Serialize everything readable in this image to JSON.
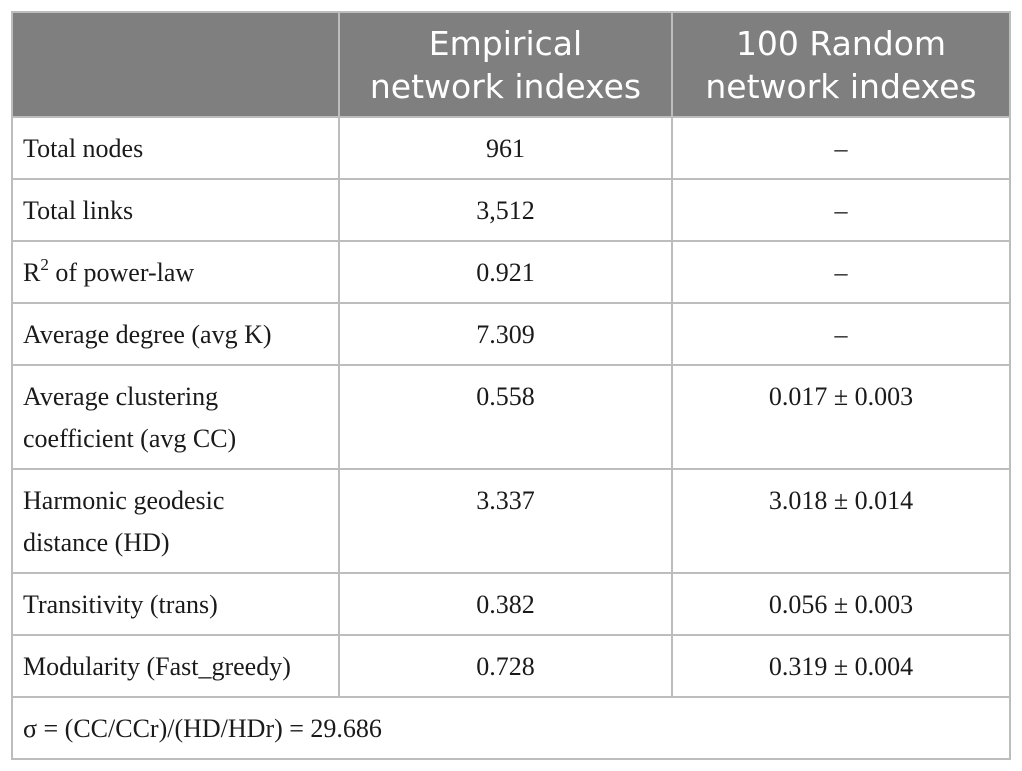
{
  "header": {
    "col1": "",
    "col2_line1": "Empirical",
    "col2_line2": "network indexes",
    "col3_line1": "100 Random",
    "col3_line2": "network indexes"
  },
  "rows": [
    {
      "label": "Total nodes",
      "empirical": "961",
      "random": "–"
    },
    {
      "label": "Total links",
      "empirical": "3,512",
      "random": "–"
    },
    {
      "label_prefix": "R",
      "label_sup": "2",
      "label_suffix": " of power-law",
      "empirical": "0.921",
      "random": "–"
    },
    {
      "label": "Average degree (avg K)",
      "empirical": "7.309",
      "random": "–"
    },
    {
      "label_line1": "Average clustering",
      "label_line2": "coefficient (avg CC)",
      "empirical": "0.558",
      "random": "0.017 ± 0.003"
    },
    {
      "label_line1": "Harmonic geodesic",
      "label_line2": "distance (HD)",
      "empirical": "3.337",
      "random": "3.018 ± 0.014"
    },
    {
      "label": "Transitivity (trans)",
      "empirical": "0.382",
      "random": "0.056 ± 0.003"
    },
    {
      "label": "Modularity (Fast_greedy)",
      "empirical": "0.728",
      "random": "0.319 ± 0.004"
    }
  ],
  "footer": "σ = (CC/CCr)/(HD/HDr) = 29.686"
}
